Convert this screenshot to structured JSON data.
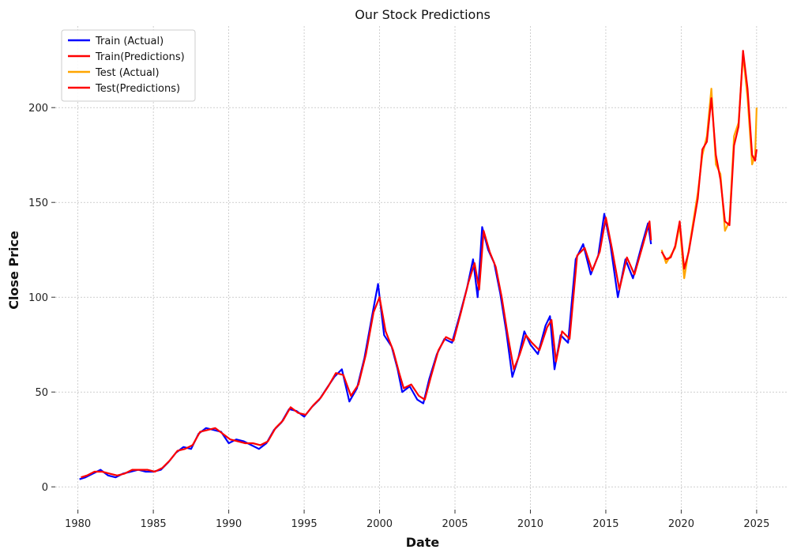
{
  "chart_data": {
    "type": "line",
    "title": "Our Stock Predictions",
    "xlabel": "Date",
    "ylabel": "Close Price",
    "xlim": [
      1978.5,
      2027.1
    ],
    "ylim": [
      -12,
      243
    ],
    "grid": true,
    "legend_position": "top-left",
    "x_ticks": [
      1980,
      1985,
      1990,
      1995,
      2000,
      2005,
      2010,
      2015,
      2020,
      2025
    ],
    "x_tick_labels": [
      "1980",
      "1985",
      "1990",
      "1995",
      "2000",
      "2005",
      "2010",
      "2015",
      "2020",
      "2025"
    ],
    "y_ticks": [
      0,
      50,
      100,
      150,
      200
    ],
    "y_tick_labels": [
      "0",
      "50",
      "100",
      "150",
      "200"
    ],
    "series": [
      {
        "name": "Train (Actual)",
        "color": "#0000ff",
        "points": [
          [
            1980.1,
            4
          ],
          [
            1980.5,
            5
          ],
          [
            1981,
            7
          ],
          [
            1981.5,
            9
          ],
          [
            1982,
            6
          ],
          [
            1982.5,
            5
          ],
          [
            1983,
            7
          ],
          [
            1983.5,
            8
          ],
          [
            1984,
            9
          ],
          [
            1984.5,
            8
          ],
          [
            1985,
            8
          ],
          [
            1985.5,
            9
          ],
          [
            1986,
            13
          ],
          [
            1986.5,
            18
          ],
          [
            1987,
            21
          ],
          [
            1987.5,
            20
          ],
          [
            1988,
            28
          ],
          [
            1988.5,
            31
          ],
          [
            1989,
            30
          ],
          [
            1989.5,
            29
          ],
          [
            1990,
            23
          ],
          [
            1990.5,
            25
          ],
          [
            1991,
            24
          ],
          [
            1991.5,
            22
          ],
          [
            1992,
            20
          ],
          [
            1992.5,
            23
          ],
          [
            1993,
            30
          ],
          [
            1993.5,
            34
          ],
          [
            1994,
            41
          ],
          [
            1994.5,
            40
          ],
          [
            1995,
            37
          ],
          [
            1995.5,
            42
          ],
          [
            1996,
            46
          ],
          [
            1996.5,
            52
          ],
          [
            1997,
            58
          ],
          [
            1997.5,
            62
          ],
          [
            1998,
            45
          ],
          [
            1998.5,
            52
          ],
          [
            1999,
            68
          ],
          [
            1999.5,
            90
          ],
          [
            1999.9,
            107
          ],
          [
            2000.3,
            80
          ],
          [
            2000.8,
            74
          ],
          [
            2001.2,
            62
          ],
          [
            2001.5,
            50
          ],
          [
            2002,
            53
          ],
          [
            2002.5,
            46
          ],
          [
            2002.9,
            44
          ],
          [
            2003.3,
            57
          ],
          [
            2003.8,
            70
          ],
          [
            2004.3,
            78
          ],
          [
            2004.8,
            76
          ],
          [
            2005.3,
            90
          ],
          [
            2005.8,
            105
          ],
          [
            2006.2,
            120
          ],
          [
            2006.5,
            100
          ],
          [
            2006.8,
            137
          ],
          [
            2007.2,
            125
          ],
          [
            2007.6,
            118
          ],
          [
            2008,
            102
          ],
          [
            2008.4,
            82
          ],
          [
            2008.8,
            58
          ],
          [
            2009.2,
            68
          ],
          [
            2009.6,
            82
          ],
          [
            2010,
            75
          ],
          [
            2010.5,
            70
          ],
          [
            2011,
            85
          ],
          [
            2011.3,
            90
          ],
          [
            2011.6,
            62
          ],
          [
            2012,
            80
          ],
          [
            2012.5,
            76
          ],
          [
            2013,
            120
          ],
          [
            2013.5,
            128
          ],
          [
            2014,
            112
          ],
          [
            2014.5,
            122
          ],
          [
            2014.9,
            144
          ],
          [
            2015.3,
            128
          ],
          [
            2015.8,
            100
          ],
          [
            2016.3,
            120
          ],
          [
            2016.8,
            110
          ],
          [
            2017.3,
            125
          ],
          [
            2017.8,
            139
          ],
          [
            2018,
            128
          ]
        ]
      },
      {
        "name": "Train(Predictions)",
        "color": "#ff0000",
        "points": [
          [
            1980.2,
            5
          ],
          [
            1980.6,
            6
          ],
          [
            1981.1,
            8
          ],
          [
            1981.6,
            8
          ],
          [
            1982.1,
            7
          ],
          [
            1982.6,
            6
          ],
          [
            1983.1,
            7
          ],
          [
            1983.6,
            9
          ],
          [
            1984.1,
            9
          ],
          [
            1984.6,
            9
          ],
          [
            1985.1,
            8
          ],
          [
            1985.6,
            10
          ],
          [
            1986.1,
            14
          ],
          [
            1986.6,
            19
          ],
          [
            1987.1,
            20
          ],
          [
            1987.6,
            22
          ],
          [
            1988.1,
            29
          ],
          [
            1988.6,
            30
          ],
          [
            1989.1,
            31
          ],
          [
            1989.6,
            28
          ],
          [
            1990.1,
            25
          ],
          [
            1990.6,
            24
          ],
          [
            1991.1,
            23
          ],
          [
            1991.6,
            23
          ],
          [
            1992.1,
            22
          ],
          [
            1992.6,
            24
          ],
          [
            1993.1,
            31
          ],
          [
            1993.6,
            35
          ],
          [
            1994.1,
            42
          ],
          [
            1994.6,
            39
          ],
          [
            1995.1,
            38
          ],
          [
            1995.6,
            43
          ],
          [
            1996.1,
            47
          ],
          [
            1996.6,
            53
          ],
          [
            1997.1,
            60
          ],
          [
            1997.6,
            59
          ],
          [
            1998.1,
            48
          ],
          [
            1998.6,
            54
          ],
          [
            1999.1,
            70
          ],
          [
            1999.6,
            92
          ],
          [
            2000,
            100
          ],
          [
            2000.4,
            82
          ],
          [
            2000.9,
            72
          ],
          [
            2001.3,
            60
          ],
          [
            2001.6,
            52
          ],
          [
            2002.1,
            54
          ],
          [
            2002.6,
            48
          ],
          [
            2003,
            46
          ],
          [
            2003.4,
            58
          ],
          [
            2003.9,
            72
          ],
          [
            2004.4,
            79
          ],
          [
            2004.9,
            77
          ],
          [
            2005.4,
            92
          ],
          [
            2005.9,
            108
          ],
          [
            2006.3,
            118
          ],
          [
            2006.6,
            104
          ],
          [
            2006.9,
            135
          ],
          [
            2007.3,
            124
          ],
          [
            2007.7,
            116
          ],
          [
            2008.1,
            100
          ],
          [
            2008.5,
            80
          ],
          [
            2008.9,
            62
          ],
          [
            2009.3,
            70
          ],
          [
            2009.7,
            80
          ],
          [
            2010.1,
            76
          ],
          [
            2010.6,
            72
          ],
          [
            2011.1,
            84
          ],
          [
            2011.4,
            88
          ],
          [
            2011.7,
            66
          ],
          [
            2012.1,
            82
          ],
          [
            2012.6,
            78
          ],
          [
            2013.1,
            122
          ],
          [
            2013.6,
            126
          ],
          [
            2014.1,
            114
          ],
          [
            2014.6,
            124
          ],
          [
            2015,
            142
          ],
          [
            2015.4,
            126
          ],
          [
            2015.9,
            104
          ],
          [
            2016.4,
            121
          ],
          [
            2016.9,
            112
          ],
          [
            2017.4,
            126
          ],
          [
            2017.9,
            140
          ],
          [
            2018,
            130
          ]
        ]
      },
      {
        "name": "Test (Actual)",
        "color": "#ffa500",
        "points": [
          [
            2018.7,
            125
          ],
          [
            2019,
            118
          ],
          [
            2019.3,
            122
          ],
          [
            2019.6,
            126
          ],
          [
            2019.9,
            138
          ],
          [
            2020.2,
            110
          ],
          [
            2020.5,
            125
          ],
          [
            2020.8,
            140
          ],
          [
            2021.1,
            155
          ],
          [
            2021.4,
            175
          ],
          [
            2021.7,
            185
          ],
          [
            2022,
            210
          ],
          [
            2022.3,
            170
          ],
          [
            2022.6,
            165
          ],
          [
            2022.9,
            135
          ],
          [
            2023.2,
            140
          ],
          [
            2023.5,
            185
          ],
          [
            2023.8,
            192
          ],
          [
            2024.1,
            228
          ],
          [
            2024.4,
            205
          ],
          [
            2024.7,
            170
          ],
          [
            2024.9,
            175
          ],
          [
            2025,
            200
          ]
        ]
      },
      {
        "name": "Test(Predictions)",
        "color": "#ff0000",
        "points": [
          [
            2018.7,
            124
          ],
          [
            2019,
            120
          ],
          [
            2019.3,
            121
          ],
          [
            2019.6,
            127
          ],
          [
            2019.9,
            140
          ],
          [
            2020.2,
            115
          ],
          [
            2020.5,
            124
          ],
          [
            2020.8,
            138
          ],
          [
            2021.1,
            152
          ],
          [
            2021.4,
            178
          ],
          [
            2021.7,
            182
          ],
          [
            2022,
            205
          ],
          [
            2022.3,
            175
          ],
          [
            2022.6,
            162
          ],
          [
            2022.9,
            140
          ],
          [
            2023.2,
            138
          ],
          [
            2023.5,
            180
          ],
          [
            2023.8,
            190
          ],
          [
            2024.1,
            230
          ],
          [
            2024.4,
            210
          ],
          [
            2024.7,
            175
          ],
          [
            2024.9,
            172
          ],
          [
            2025,
            178
          ]
        ]
      }
    ]
  }
}
